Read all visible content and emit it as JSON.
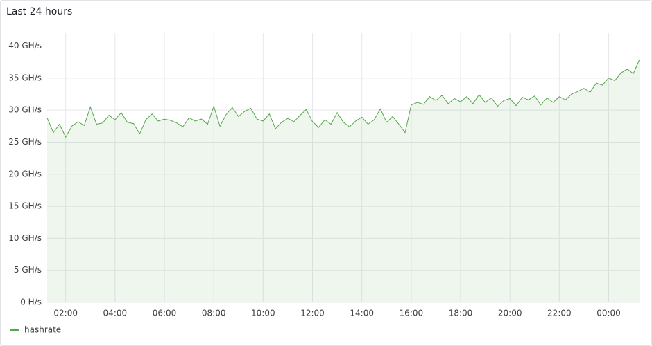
{
  "chart_data": {
    "type": "line",
    "title": "Last 24 hours",
    "x": [
      1.25,
      1.5,
      1.75,
      2,
      2.25,
      2.5,
      2.75,
      3,
      3.25,
      3.5,
      3.75,
      4,
      4.25,
      4.5,
      4.75,
      5,
      5.25,
      5.5,
      5.75,
      6,
      6.25,
      6.5,
      6.75,
      7,
      7.25,
      7.5,
      7.75,
      8,
      8.25,
      8.5,
      8.75,
      9,
      9.25,
      9.5,
      9.75,
      10,
      10.25,
      10.5,
      10.75,
      11,
      11.25,
      11.5,
      11.75,
      12,
      12.25,
      12.5,
      12.75,
      13,
      13.25,
      13.5,
      13.75,
      14,
      14.25,
      14.5,
      14.75,
      15,
      15.25,
      15.5,
      15.75,
      16,
      16.25,
      16.5,
      16.75,
      17,
      17.25,
      17.5,
      17.75,
      18,
      18.25,
      18.5,
      18.75,
      19,
      19.25,
      19.5,
      19.75,
      20,
      20.25,
      20.5,
      20.75,
      21,
      21.25,
      21.5,
      21.75,
      22,
      22.25,
      22.5,
      22.75,
      23,
      23.25,
      23.5,
      23.75,
      24,
      24.25,
      24.5,
      24.75,
      25,
      25.25
    ],
    "series": [
      {
        "name": "hashrate",
        "color": "#56a64b",
        "values": [
          28.8,
          26.5,
          27.8,
          25.8,
          27.5,
          28.2,
          27.6,
          30.5,
          27.8,
          28.0,
          29.2,
          28.5,
          29.6,
          28.1,
          27.9,
          26.3,
          28.5,
          29.4,
          28.3,
          28.6,
          28.4,
          28.0,
          27.4,
          28.8,
          28.3,
          28.6,
          27.8,
          30.6,
          27.5,
          29.3,
          30.4,
          29.0,
          29.8,
          30.3,
          28.6,
          28.3,
          29.4,
          27.1,
          28.1,
          28.7,
          28.2,
          29.2,
          30.1,
          28.2,
          27.3,
          28.5,
          27.8,
          29.6,
          28.1,
          27.4,
          28.3,
          28.9,
          27.8,
          28.5,
          30.2,
          28.1,
          29.0,
          27.8,
          26.5,
          30.8,
          31.2,
          30.9,
          32.1,
          31.5,
          32.3,
          31.0,
          31.8,
          31.3,
          32.1,
          31.0,
          32.4,
          31.2,
          31.9,
          30.6,
          31.5,
          31.8,
          30.7,
          32.0,
          31.6,
          32.2,
          30.8,
          31.9,
          31.2,
          32.1,
          31.6,
          32.5,
          32.9,
          33.4,
          32.8,
          34.2,
          33.9,
          35.0,
          34.6,
          35.8,
          36.4,
          35.7,
          37.9
        ]
      }
    ],
    "xlim": [
      1.25,
      25.25
    ],
    "xticks": [
      {
        "value": 2,
        "label": "02:00"
      },
      {
        "value": 4,
        "label": "04:00"
      },
      {
        "value": 6,
        "label": "06:00"
      },
      {
        "value": 8,
        "label": "08:00"
      },
      {
        "value": 10,
        "label": "10:00"
      },
      {
        "value": 12,
        "label": "12:00"
      },
      {
        "value": 14,
        "label": "14:00"
      },
      {
        "value": 16,
        "label": "16:00"
      },
      {
        "value": 18,
        "label": "18:00"
      },
      {
        "value": 20,
        "label": "20:00"
      },
      {
        "value": 22,
        "label": "22:00"
      },
      {
        "value": 24,
        "label": "00:00"
      }
    ],
    "ylim": [
      0,
      42
    ],
    "yticks": [
      {
        "value": 0,
        "label": "0 H/s"
      },
      {
        "value": 5,
        "label": "5 GH/s"
      },
      {
        "value": 10,
        "label": "10 GH/s"
      },
      {
        "value": 15,
        "label": "15 GH/s"
      },
      {
        "value": 20,
        "label": "20 GH/s"
      },
      {
        "value": 25,
        "label": "25 GH/s"
      },
      {
        "value": 30,
        "label": "30 GH/s"
      },
      {
        "value": 35,
        "label": "35 GH/s"
      },
      {
        "value": 40,
        "label": "40 GH/s"
      }
    ],
    "grid": true,
    "legend": "bottom-left"
  }
}
